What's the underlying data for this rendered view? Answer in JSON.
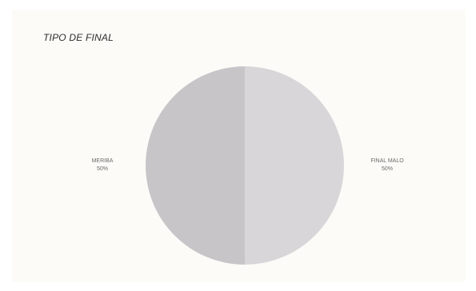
{
  "chart_data": {
    "type": "pie",
    "title": "TIPO DE FINAL",
    "start_angle_deg": 0,
    "direction": "clockwise",
    "slices": [
      {
        "label": "FINAL MALO",
        "value": 50,
        "value_label": "50%",
        "color": "#d8d6d8"
      },
      {
        "label": "MERIBA",
        "value": 50,
        "value_label": "50%",
        "color": "#c8c5c9"
      }
    ]
  }
}
